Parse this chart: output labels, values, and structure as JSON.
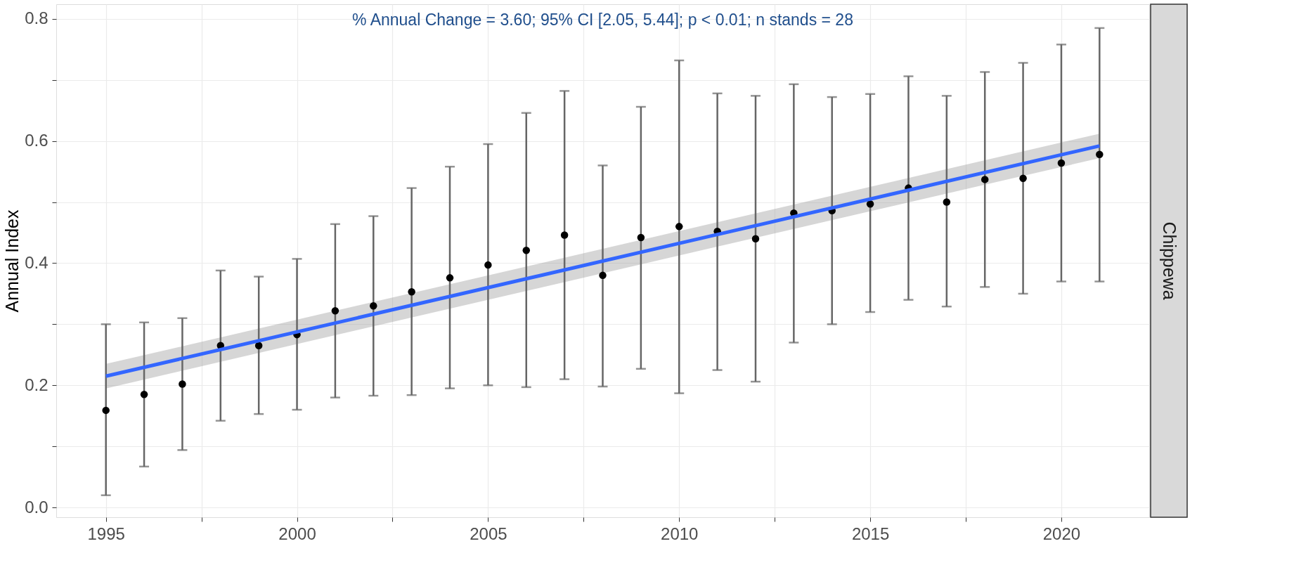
{
  "chart_data": {
    "type": "scatter",
    "ylabel": "Annual Index",
    "annotations": [
      "% Annual Change = 3.60; 95% CI [2.05, 5.44]; p < 0.01; n stands = 28",
      "Chippewa"
    ],
    "x": [
      1995,
      1996,
      1997,
      1998,
      1999,
      2000,
      2001,
      2002,
      2003,
      2004,
      2005,
      2006,
      2007,
      2008,
      2009,
      2010,
      2011,
      2012,
      2013,
      2014,
      2015,
      2016,
      2017,
      2018,
      2019,
      2020,
      2021
    ],
    "series": [
      {
        "color": "#000000",
        "marker": "circle",
        "values": [
          0.159,
          0.185,
          0.202,
          0.265,
          0.265,
          0.283,
          0.322,
          0.33,
          0.353,
          0.376,
          0.397,
          0.421,
          0.446,
          0.38,
          0.442,
          0.46,
          0.452,
          0.44,
          0.482,
          0.486,
          0.497,
          0.523,
          0.5,
          0.537,
          0.539,
          0.564,
          0.578
        ],
        "errors": [
          [
            0.02,
            0.3
          ],
          [
            0.067,
            0.303
          ],
          [
            0.094,
            0.31
          ],
          [
            0.142,
            0.388
          ],
          [
            0.153,
            0.378
          ],
          [
            0.16,
            0.407
          ],
          [
            0.18,
            0.464
          ],
          [
            0.183,
            0.477
          ],
          [
            0.184,
            0.523
          ],
          [
            0.195,
            0.558
          ],
          [
            0.2,
            0.595
          ],
          [
            0.197,
            0.646
          ],
          [
            0.21,
            0.682
          ],
          [
            0.198,
            0.56
          ],
          [
            0.227,
            0.656
          ],
          [
            0.187,
            0.732
          ],
          [
            0.225,
            0.678
          ],
          [
            0.206,
            0.674
          ],
          [
            0.27,
            0.693
          ],
          [
            0.3,
            0.672
          ],
          [
            0.32,
            0.677
          ],
          [
            0.34,
            0.706
          ],
          [
            0.329,
            0.674
          ],
          [
            0.361,
            0.713
          ],
          [
            0.35,
            0.728
          ],
          [
            0.37,
            0.758
          ],
          [
            0.37,
            0.785
          ]
        ]
      },
      {
        "type": "line",
        "color": "#3366ff",
        "x": [
          1995,
          2021
        ],
        "values": [
          0.215,
          0.592
        ],
        "lower": [
          0.195,
          0.572
        ],
        "upper": [
          0.235,
          0.612
        ]
      }
    ],
    "xlim": [
      1993.7,
      2022.3
    ],
    "xticks": [
      1995,
      {
        "value": 1997.5,
        "label": null
      },
      2000,
      {
        "value": 2002.5,
        "label": null
      },
      2005,
      {
        "value": 2007.5,
        "label": null
      },
      2010,
      {
        "value": 2012.5,
        "label": null
      },
      2015,
      {
        "value": 2017.5,
        "label": null
      },
      2020
    ],
    "ylim": [
      -0.016,
      0.824
    ],
    "yticks": [
      {
        "value": 0,
        "label": "0.0"
      },
      {
        "value": 0.1,
        "label": null
      },
      0.2,
      {
        "value": 0.3,
        "label": null
      },
      0.4,
      {
        "value": 0.5,
        "label": null
      },
      0.6,
      {
        "value": 0.7,
        "label": null
      },
      0.8
    ],
    "grid": true,
    "line_style": "solid"
  }
}
